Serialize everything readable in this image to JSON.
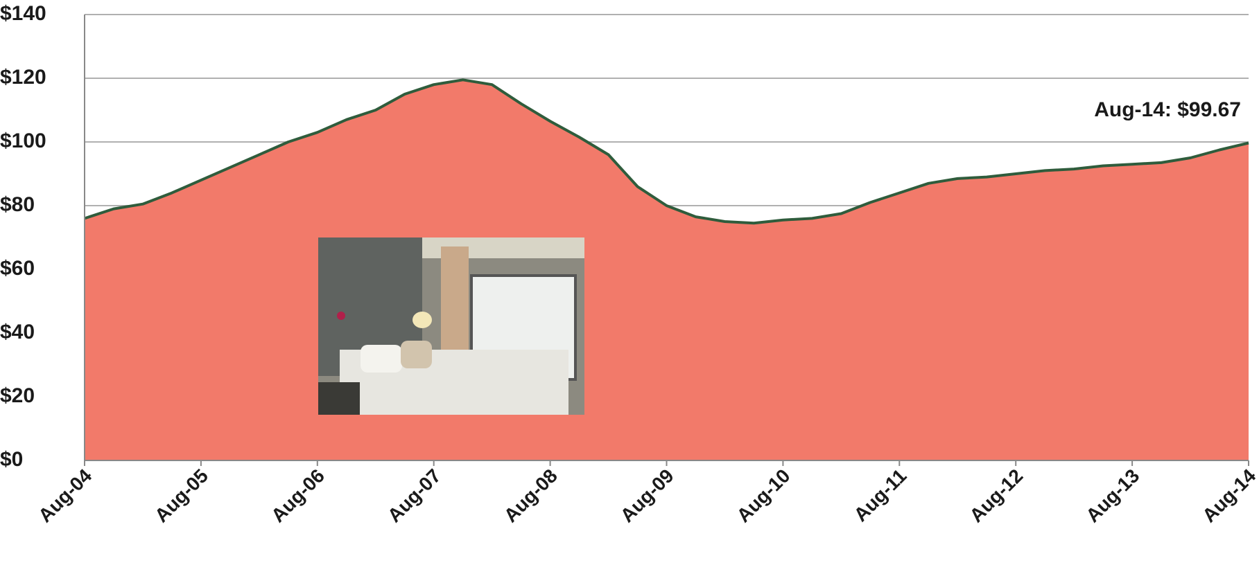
{
  "chart_data": {
    "type": "area",
    "categories": [
      "Aug-04",
      null,
      null,
      null,
      "Aug-05",
      null,
      null,
      null,
      "Aug-06",
      null,
      null,
      null,
      "Aug-07",
      null,
      null,
      null,
      "Aug-08",
      null,
      null,
      null,
      "Aug-09",
      null,
      null,
      null,
      "Aug-10",
      null,
      null,
      null,
      "Aug-11",
      null,
      null,
      null,
      "Aug-12",
      null,
      null,
      null,
      "Aug-13",
      null,
      null,
      null,
      "Aug-14"
    ],
    "values": [
      76,
      79,
      80.5,
      84,
      88,
      92,
      96,
      100,
      103,
      107,
      110,
      115,
      118,
      119.5,
      118,
      112,
      106.5,
      101.5,
      96,
      86,
      80,
      76.5,
      75,
      74.5,
      75.5,
      76,
      77.5,
      81,
      84,
      87,
      88.5,
      89,
      90,
      91,
      91.5,
      92.5,
      93,
      93.5,
      95,
      97.5,
      99.67
    ],
    "color": "#f27a6a",
    "line_color": "#2f5c3c",
    "ylim": [
      0,
      140
    ],
    "yticks": [
      {
        "value": 0,
        "label": "$0"
      },
      {
        "value": 20,
        "label": "$20"
      },
      {
        "value": 40,
        "label": "$40"
      },
      {
        "value": 60,
        "label": "$60"
      },
      {
        "value": 80,
        "label": "$80"
      },
      {
        "value": 100,
        "label": "$100"
      },
      {
        "value": 120,
        "label": "$120"
      },
      {
        "value": 140,
        "label": "$140"
      }
    ],
    "grid": true,
    "annotation": "Aug-14: $99.67"
  }
}
